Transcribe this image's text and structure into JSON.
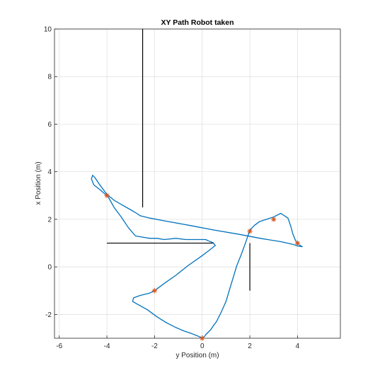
{
  "chart_data": {
    "type": "line",
    "title": "XY Path Robot taken",
    "xlabel": "y Position (m)",
    "ylabel": "x Position (m)",
    "xlim": [
      -6.2,
      5.8
    ],
    "ylim": [
      -3,
      10
    ],
    "xticks": [
      -6,
      -4,
      -2,
      0,
      2,
      4
    ],
    "yticks": [
      -2,
      0,
      2,
      4,
      6,
      8,
      10
    ],
    "grid": true,
    "colors": {
      "path": "#0072BD",
      "waypoint": "#D95319",
      "obstacle": "#000000",
      "grid": "#dddddd",
      "axis": "#262626"
    },
    "series": [
      {
        "kind": "path",
        "x": [
          0,
          -0.2,
          -0.45,
          -0.75,
          -1.1,
          -1.5,
          -1.9,
          -2.3,
          -2.75,
          -2.92,
          -2.88,
          -2.6,
          -2.2,
          -2.0,
          -1.6,
          -1.1,
          -0.6,
          -0.1,
          0.3,
          0.55,
          0.45,
          0.25,
          0.15,
          -0.2,
          -0.7,
          -1.1,
          -1.6,
          -1.9,
          -2.2,
          -2.5,
          -2.8,
          -3.1,
          -3.4,
          -3.7,
          -3.95,
          -4.3,
          -4.55,
          -4.65,
          -4.6,
          -4.5,
          -4.3,
          -4.0,
          -3.7,
          -3.35,
          -3.0,
          -2.75,
          -2.6,
          -2.2,
          -1.5,
          -0.5,
          0.5,
          1.5,
          2.5,
          3.3,
          3.8,
          4.0,
          4.2,
          4.0,
          3.9,
          3.8,
          3.72,
          3.6,
          3.3,
          3.0,
          2.7,
          2.4,
          2.2,
          2.0,
          1.85,
          1.65,
          1.45,
          1.3,
          1.15,
          1.0,
          0.8,
          0.6,
          0.45,
          0.35,
          0.15,
          0.05,
          0
        ],
        "y": [
          -3,
          -2.9,
          -2.8,
          -2.7,
          -2.55,
          -2.35,
          -2.1,
          -1.8,
          -1.55,
          -1.45,
          -1.3,
          -1.2,
          -1.1,
          -1.0,
          -0.7,
          -0.35,
          0.05,
          0.4,
          0.7,
          0.9,
          1.02,
          1.1,
          1.15,
          1.15,
          1.15,
          1.2,
          1.15,
          1.2,
          1.2,
          1.25,
          1.3,
          1.65,
          2.1,
          2.5,
          2.95,
          3.25,
          3.45,
          3.7,
          3.85,
          3.75,
          3.45,
          3.05,
          2.8,
          2.6,
          2.4,
          2.25,
          2.15,
          2.05,
          1.92,
          1.74,
          1.55,
          1.38,
          1.19,
          1.06,
          0.95,
          0.88,
          0.85,
          0.97,
          1.15,
          1.4,
          1.7,
          2.05,
          2.25,
          2.1,
          2.0,
          1.9,
          1.75,
          1.55,
          1.1,
          0.55,
          0.05,
          -0.45,
          -0.95,
          -1.45,
          -1.9,
          -2.3,
          -2.5,
          -2.65,
          -2.85,
          -2.98,
          -3
        ]
      }
    ],
    "waypoints": {
      "x": [
        0,
        -2,
        -4,
        2,
        3,
        4
      ],
      "y": [
        -3,
        -1,
        3,
        1.5,
        2,
        1
      ]
    },
    "obstacles": [
      {
        "x": [
          -2.5,
          -2.5
        ],
        "y": [
          2.5,
          10
        ]
      },
      {
        "x": [
          -4,
          0.5
        ],
        "y": [
          1,
          1
        ]
      },
      {
        "x": [
          2,
          2
        ],
        "y": [
          1,
          -1
        ]
      }
    ]
  }
}
